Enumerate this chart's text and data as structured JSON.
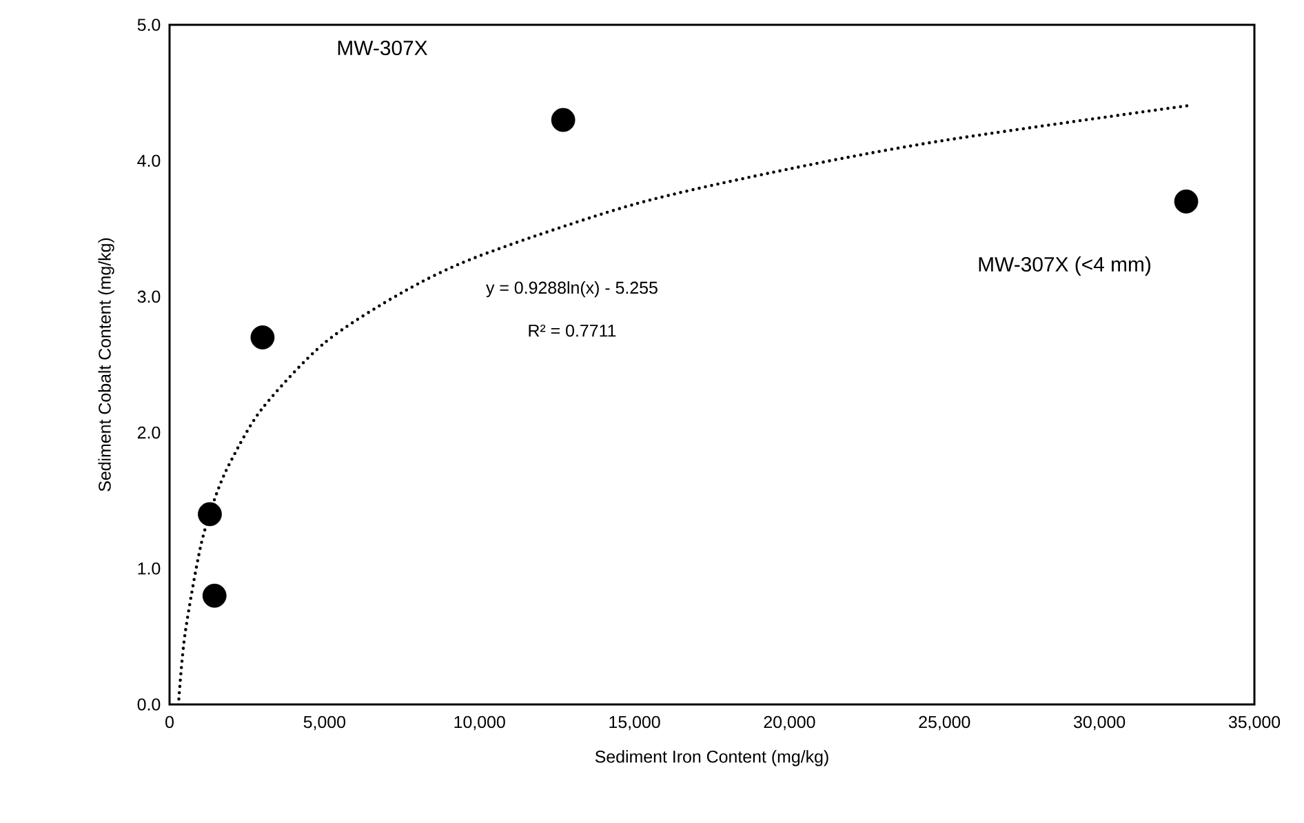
{
  "chart_data": {
    "type": "scatter",
    "xlabel": "Sediment Iron Content (mg/kg)",
    "ylabel": "Sediment Cobalt Content (mg/kg)",
    "xlim": [
      0,
      35000
    ],
    "ylim": [
      0,
      5
    ],
    "xticks": [
      0,
      {
        "value": 5000,
        "label": "5,000"
      },
      {
        "value": 10000,
        "label": "10,000"
      },
      {
        "value": 15000,
        "label": "15,000"
      },
      {
        "value": 20000,
        "label": "20,000"
      },
      {
        "value": 25000,
        "label": "25,000"
      },
      {
        "value": 30000,
        "label": "30,000"
      },
      {
        "value": 35000,
        "label": "35,000"
      }
    ],
    "yticks": [
      {
        "value": 0,
        "label": "0.0"
      },
      {
        "value": 1,
        "label": "1.0"
      },
      {
        "value": 2,
        "label": "2.0"
      },
      {
        "value": 3,
        "label": "3.0"
      },
      {
        "value": 4,
        "label": "4.0"
      },
      {
        "value": 5,
        "label": "5.0"
      }
    ],
    "series": [
      {
        "color": "#000000",
        "marker": "circle",
        "x": [
          1300,
          1450,
          3000,
          12700,
          32800
        ],
        "values": [
          1.4,
          0.8,
          2.7,
          4.3,
          3.7
        ]
      },
      {
        "type": "line",
        "color": "#000000",
        "marker": "none",
        "line_style": "dotted",
        "x": [
          300,
          500,
          1000,
          1500,
          2000,
          3000,
          5000,
          7500,
          10000,
          15000,
          20000,
          25000,
          33000
        ],
        "values": [
          0.04,
          0.52,
          1.16,
          1.54,
          1.8,
          2.18,
          2.66,
          3.03,
          3.3,
          3.68,
          3.94,
          4.15,
          4.41
        ]
      }
    ],
    "annotations": [
      "MW-307X",
      "MW-307X (<4 mm)",
      "y = 0.9288ln(x) - 5.255",
      "R² = 0.7711"
    ]
  }
}
